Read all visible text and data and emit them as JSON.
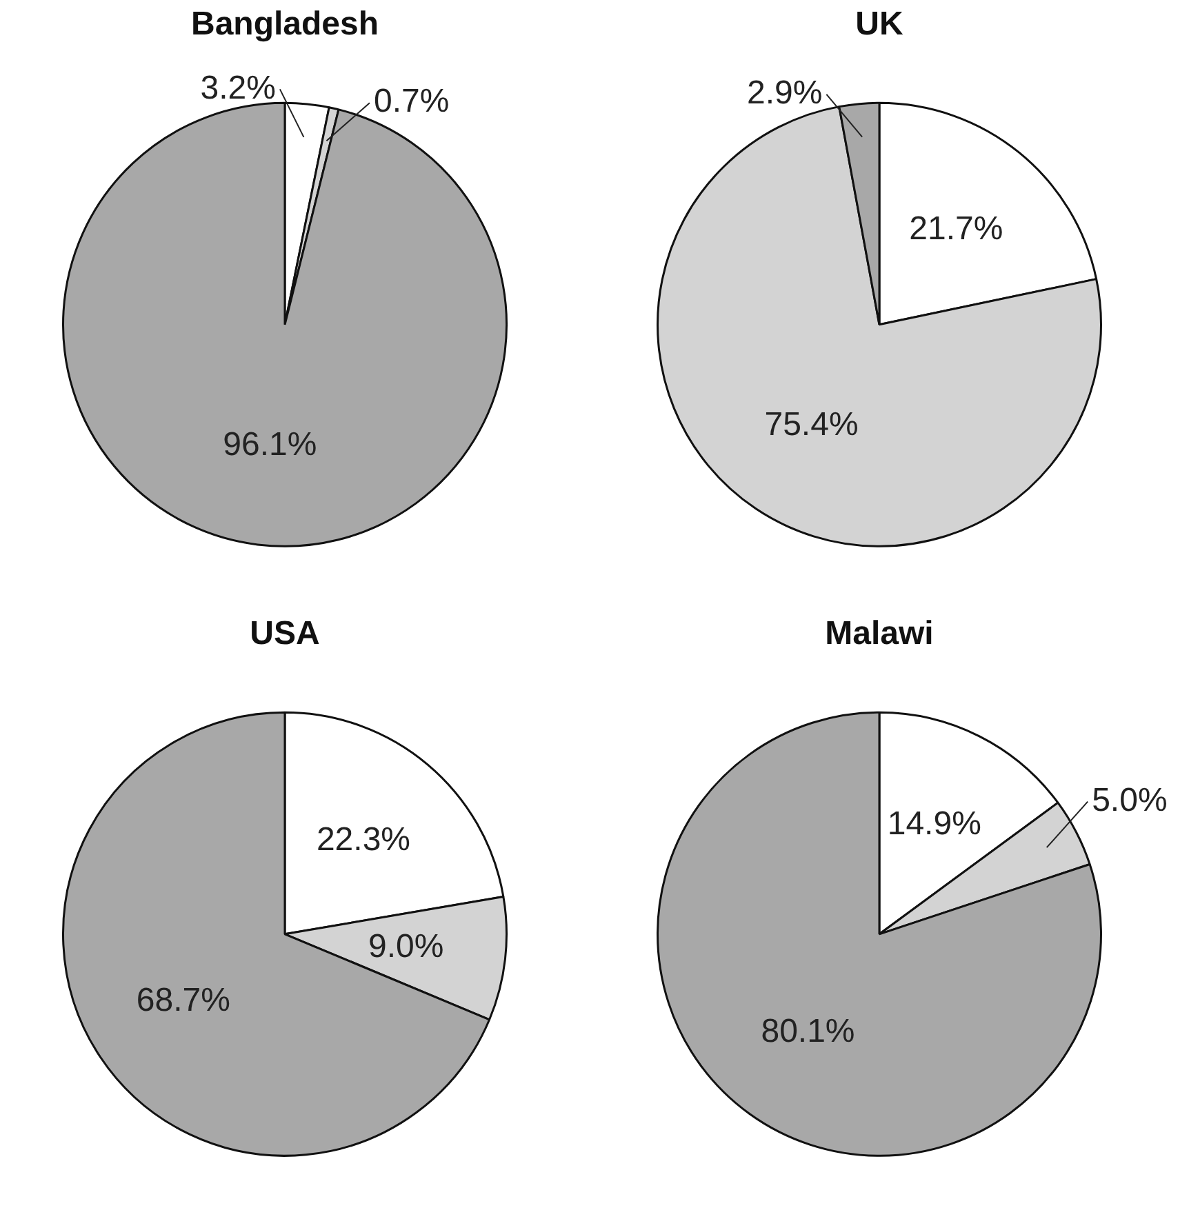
{
  "chart_data": [
    {
      "type": "pie",
      "title": "Bangladesh",
      "categories": [
        null,
        null,
        null
      ],
      "values": [
        3.2,
        0.7,
        96.1
      ],
      "value_labels": [
        "3.2%",
        "0.7%",
        "96.1%"
      ],
      "colors": [
        "#ffffff",
        "#d3d3d3",
        "#a8a8a8"
      ]
    },
    {
      "type": "pie",
      "title": "UK",
      "categories": [
        null,
        null,
        null
      ],
      "values": [
        21.7,
        75.4,
        2.9
      ],
      "value_labels": [
        "21.7%",
        "75.4%",
        "2.9%"
      ],
      "colors": [
        "#ffffff",
        "#d3d3d3",
        "#a8a8a8"
      ]
    },
    {
      "type": "pie",
      "title": "USA",
      "categories": [
        null,
        null,
        null
      ],
      "values": [
        22.3,
        9.0,
        68.7
      ],
      "value_labels": [
        "22.3%",
        "9.0%",
        "68.7%"
      ],
      "colors": [
        "#ffffff",
        "#d3d3d3",
        "#a8a8a8"
      ]
    },
    {
      "type": "pie",
      "title": "Malawi",
      "categories": [
        null,
        null,
        null
      ],
      "values": [
        14.9,
        5.0,
        80.1
      ],
      "value_labels": [
        "14.9%",
        "5.0%",
        "80.1%"
      ],
      "colors": [
        "#ffffff",
        "#d3d3d3",
        "#a8a8a8"
      ]
    }
  ]
}
